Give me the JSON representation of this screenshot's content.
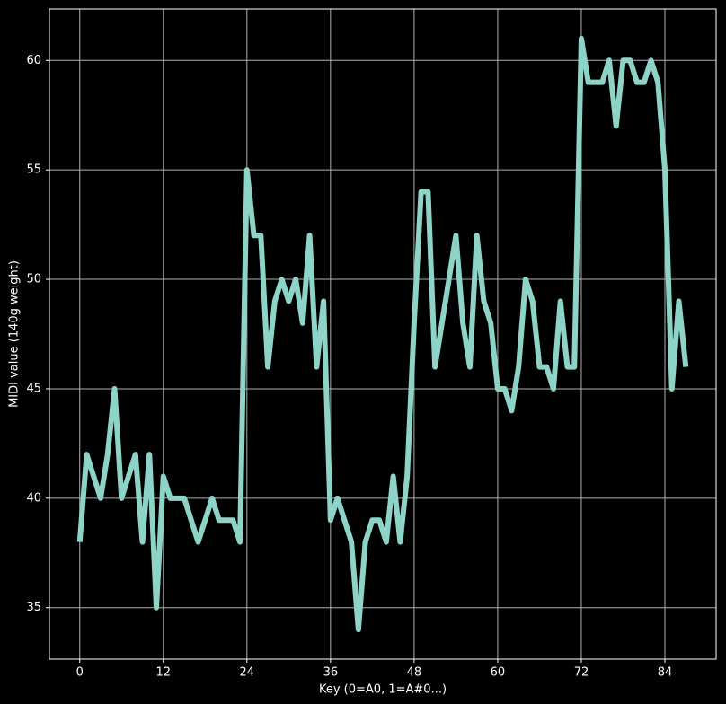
{
  "chart_data": {
    "type": "line",
    "xlabel": "Key (0=A0, 1=A#0...)",
    "ylabel": "MIDI value (140g weight)",
    "x": [
      0,
      1,
      2,
      3,
      4,
      5,
      6,
      7,
      8,
      9,
      10,
      11,
      12,
      13,
      14,
      15,
      16,
      17,
      18,
      19,
      20,
      21,
      22,
      23,
      24,
      25,
      26,
      27,
      28,
      29,
      30,
      31,
      32,
      33,
      34,
      35,
      36,
      37,
      38,
      39,
      40,
      41,
      42,
      43,
      44,
      45,
      46,
      47,
      48,
      49,
      50,
      51,
      52,
      53,
      54,
      55,
      56,
      57,
      58,
      59,
      60,
      61,
      62,
      63,
      64,
      65,
      66,
      67,
      68,
      69,
      70,
      71,
      72,
      73,
      74,
      75,
      76,
      77,
      78,
      79,
      80,
      81,
      82,
      83,
      84,
      85,
      86,
      87
    ],
    "values": [
      38,
      42,
      41,
      40,
      42,
      45,
      40,
      41,
      42,
      38,
      42,
      35,
      41,
      40,
      40,
      40,
      39,
      38,
      39,
      40,
      39,
      39,
      39,
      38,
      55,
      52,
      52,
      46,
      49,
      50,
      49,
      50,
      48,
      52,
      46,
      49,
      39,
      40,
      39,
      38,
      34,
      38,
      39,
      39,
      38,
      41,
      38,
      41,
      48,
      54,
      54,
      46,
      48,
      50,
      52,
      48,
      46,
      52,
      49,
      48,
      45,
      45,
      44,
      46,
      50,
      49,
      46,
      46,
      45,
      49,
      46,
      46,
      61,
      59,
      59,
      59,
      60,
      57,
      60,
      60,
      59,
      59,
      60,
      59,
      55,
      45,
      49,
      46
    ],
    "color": "#8dd3c7",
    "xlim": [
      -4.35,
      91.35
    ],
    "ylim": [
      32.65,
      62.35
    ],
    "xticks": [
      0,
      12,
      24,
      36,
      48,
      60,
      72,
      84
    ],
    "yticks": [
      35,
      40,
      45,
      50,
      55,
      60
    ],
    "grid": true
  }
}
